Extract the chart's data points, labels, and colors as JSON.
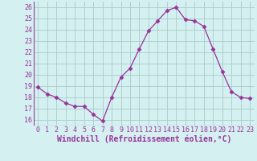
{
  "x": [
    0,
    1,
    2,
    3,
    4,
    5,
    6,
    7,
    8,
    9,
    10,
    11,
    12,
    13,
    14,
    15,
    16,
    17,
    18,
    19,
    20,
    21,
    22,
    23
  ],
  "y": [
    18.9,
    18.3,
    18.0,
    17.5,
    17.2,
    17.2,
    16.5,
    15.9,
    18.0,
    19.8,
    20.6,
    22.3,
    23.9,
    24.8,
    25.7,
    26.0,
    24.9,
    24.8,
    24.3,
    22.3,
    20.3,
    18.5,
    18.0,
    17.9
  ],
  "line_color": "#993399",
  "marker": "D",
  "marker_size": 2.5,
  "bg_color": "#d4f0f0",
  "grid_color": "#aacccc",
  "xlabel": "Windchill (Refroidissement éolien,°C)",
  "xlabel_color": "#993399",
  "tick_color": "#993399",
  "ylim": [
    15.5,
    26.5
  ],
  "xlim": [
    -0.5,
    23.5
  ],
  "yticks": [
    16,
    17,
    18,
    19,
    20,
    21,
    22,
    23,
    24,
    25,
    26
  ],
  "xticks": [
    0,
    1,
    2,
    3,
    4,
    5,
    6,
    7,
    8,
    9,
    10,
    11,
    12,
    13,
    14,
    15,
    16,
    17,
    18,
    19,
    20,
    21,
    22,
    23
  ],
  "tick_fontsize": 6,
  "xlabel_fontsize": 7
}
